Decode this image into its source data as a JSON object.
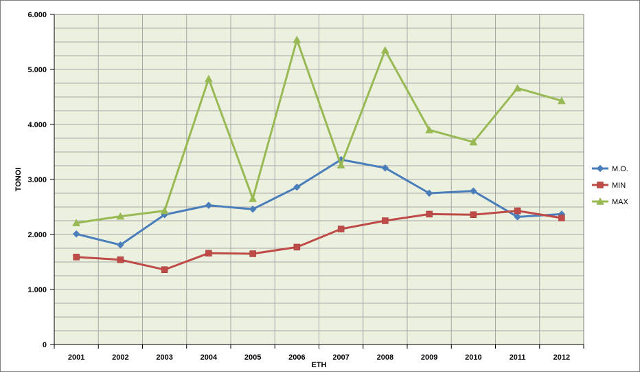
{
  "chart_data": {
    "type": "line",
    "title": "",
    "xlabel": "ETH",
    "ylabel": "TONOI",
    "categories": [
      "2001",
      "2002",
      "2003",
      "2004",
      "2005",
      "2006",
      "2007",
      "2008",
      "2009",
      "2010",
      "2011",
      "2012"
    ],
    "ylim": [
      0,
      6000
    ],
    "yticks": [
      0,
      1000,
      2000,
      3000,
      4000,
      5000,
      6000
    ],
    "ytick_labels": [
      "0",
      "1.000",
      "2.000",
      "3.000",
      "4.000",
      "5.000",
      "6.000"
    ],
    "grid": true,
    "legend_position": "right",
    "plot_background": "#ebf1de",
    "grid_color": "#a6a6a6",
    "series": [
      {
        "name": "M.O.",
        "color": "#4a7ebb",
        "marker": "diamond",
        "values": [
          2010,
          1810,
          2360,
          2530,
          2460,
          2860,
          3360,
          3210,
          2750,
          2790,
          2320,
          2370
        ]
      },
      {
        "name": "MIN",
        "color": "#be4b48",
        "marker": "square",
        "values": [
          1590,
          1540,
          1360,
          1660,
          1650,
          1770,
          2100,
          2250,
          2370,
          2360,
          2430,
          2300
        ]
      },
      {
        "name": "MAX",
        "color": "#98b954",
        "marker": "triangle",
        "values": [
          2210,
          2330,
          2430,
          4830,
          2650,
          5540,
          3260,
          5350,
          3900,
          3680,
          4660,
          4430
        ]
      }
    ]
  }
}
